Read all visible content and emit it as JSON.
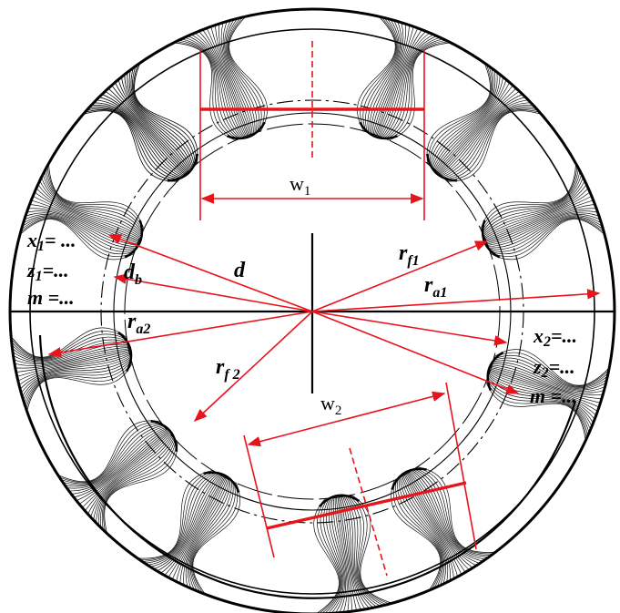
{
  "labels": {
    "w1": {
      "base": "w",
      "sub": "1"
    },
    "w2": {
      "base": "w",
      "sub": "2"
    },
    "d": "d",
    "db": {
      "base": "d",
      "sub": "b"
    },
    "ra1": {
      "base": "r",
      "sub": "a1"
    },
    "ra2": {
      "base": "r",
      "sub": "a2"
    },
    "rf1": {
      "base": "r",
      "sub": "f1"
    },
    "rf2": {
      "base": "r",
      "sub": "f 2"
    }
  },
  "gear1_params": {
    "x": {
      "base": "x",
      "sub": "1",
      "value": "= ..."
    },
    "z": {
      "base": "z",
      "sub": "1",
      "value": "=..."
    },
    "m": {
      "base": "m",
      "value": " =..."
    }
  },
  "gear2_params": {
    "x": {
      "base": "x",
      "sub": "2",
      "value": "=..."
    },
    "z": {
      "base": "z",
      "sub": "2",
      "value": "=..."
    },
    "m": {
      "base": "m",
      "value": " =..."
    }
  },
  "colors": {
    "dimension": "#e8141c",
    "outline": "#000000",
    "background": "#ffffff"
  }
}
